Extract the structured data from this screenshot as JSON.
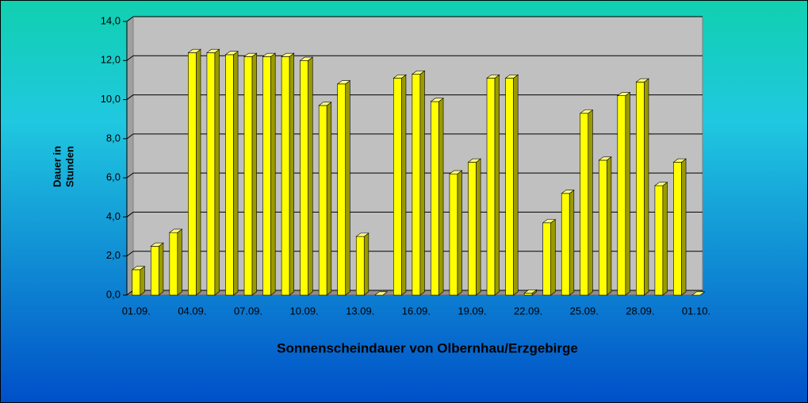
{
  "chart_data": {
    "type": "bar3d",
    "title": "Sonnenscheindauer von Olbernhau/Erzgebirge",
    "y_label_lines": [
      "Dauer in",
      "Stunden"
    ],
    "categories": [
      "01.09.",
      null,
      null,
      "04.09.",
      null,
      null,
      "07.09.",
      null,
      null,
      "10.09.",
      null,
      null,
      "13.09.",
      null,
      null,
      "16.09.",
      null,
      null,
      "19.09.",
      null,
      null,
      "22.09.",
      null,
      null,
      "25.09.",
      null,
      null,
      "28.09.",
      null,
      null,
      "01.10."
    ],
    "values": [
      1.3,
      2.5,
      3.2,
      12.4,
      12.4,
      12.3,
      12.2,
      12.2,
      12.2,
      12.0,
      9.7,
      10.8,
      3.0,
      0,
      11.1,
      11.3,
      9.9,
      6.2,
      6.8,
      11.1,
      11.1,
      0.1,
      3.7,
      5.2,
      9.3,
      6.9,
      10.2,
      10.9,
      5.6,
      6.8,
      0
    ],
    "color": "#ffff00",
    "ylim": [
      0,
      14
    ],
    "yticks": [
      {
        "value": 0,
        "label": "0,0"
      },
      {
        "value": 2,
        "label": "2,0"
      },
      {
        "value": 4,
        "label": "4,0"
      },
      {
        "value": 6,
        "label": "6,0"
      },
      {
        "value": 8,
        "label": "8,0"
      },
      {
        "value": 10,
        "label": "10,0"
      },
      {
        "value": 12,
        "label": "12,0"
      },
      {
        "value": 14,
        "label": "14,0"
      }
    ],
    "grid": true
  }
}
